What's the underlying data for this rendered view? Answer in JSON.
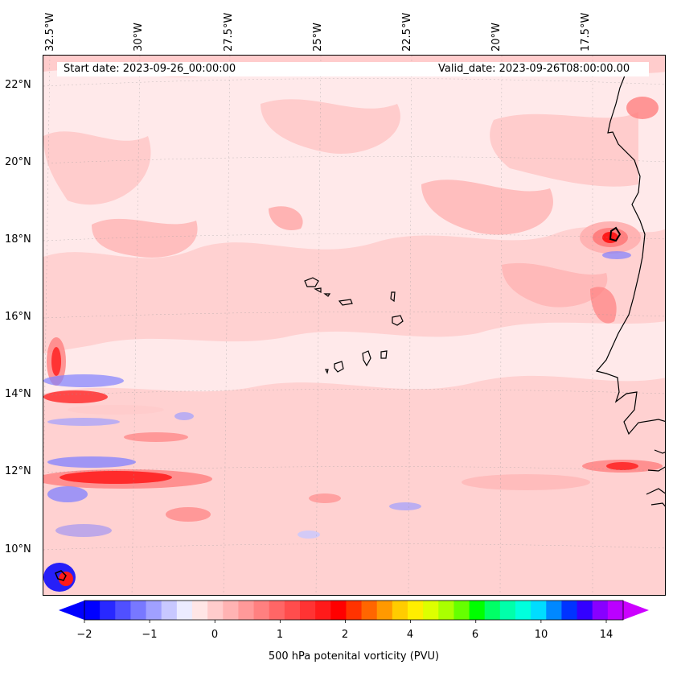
{
  "header": {
    "start_date": "Start date: 2023-09-26_00:00:00",
    "valid_date": "Valid_date: 2023-09-26T08:00:00.00"
  },
  "axes": {
    "latitude_labels": [
      "22°N",
      "20°N",
      "18°N",
      "16°N",
      "14°N",
      "12°N",
      "10°N"
    ],
    "longitude_labels": [
      "32.5°W",
      "30°W",
      "27.5°W",
      "25°W",
      "22.5°W",
      "20°W",
      "17.5°W"
    ]
  },
  "colorbar": {
    "title": "500 hPa potenital vorticity (PVU)",
    "tick_labels": [
      "−2",
      "−1",
      "0",
      "1",
      "2",
      "4",
      "6",
      "10",
      "14"
    ],
    "colors": [
      "#0000ff",
      "#2828ff",
      "#5050ff",
      "#7878ff",
      "#a0a0ff",
      "#c8c8ff",
      "#ececff",
      "#ffe6e6",
      "#ffcccc",
      "#ffb3b3",
      "#ff9999",
      "#ff8080",
      "#ff6666",
      "#ff4d4d",
      "#ff3333",
      "#ff1a1a",
      "#ff0000",
      "#ff3300",
      "#ff6600",
      "#ff9900",
      "#ffcc00",
      "#ffee00",
      "#ddff00",
      "#aaff00",
      "#66ff00",
      "#00ff00",
      "#00ff66",
      "#00ffaa",
      "#00ffdd",
      "#00ddff",
      "#0088ff",
      "#0033ff",
      "#3300ff",
      "#8800ff",
      "#bb00ff"
    ],
    "extend_low_color": "#0000ff",
    "extend_high_color": "#cc00ff"
  },
  "map": {
    "background_color": "#ffe9ea",
    "coastline_color": "#000000",
    "colors": {
      "very_light": "#ffe6e6",
      "light": "#ffcccc",
      "medium": "#ffb3b3",
      "strong": "#ff8080",
      "red": "#ff1a1a",
      "light_blue": "#e6e6ff",
      "blue": "#8080ff"
    }
  }
}
